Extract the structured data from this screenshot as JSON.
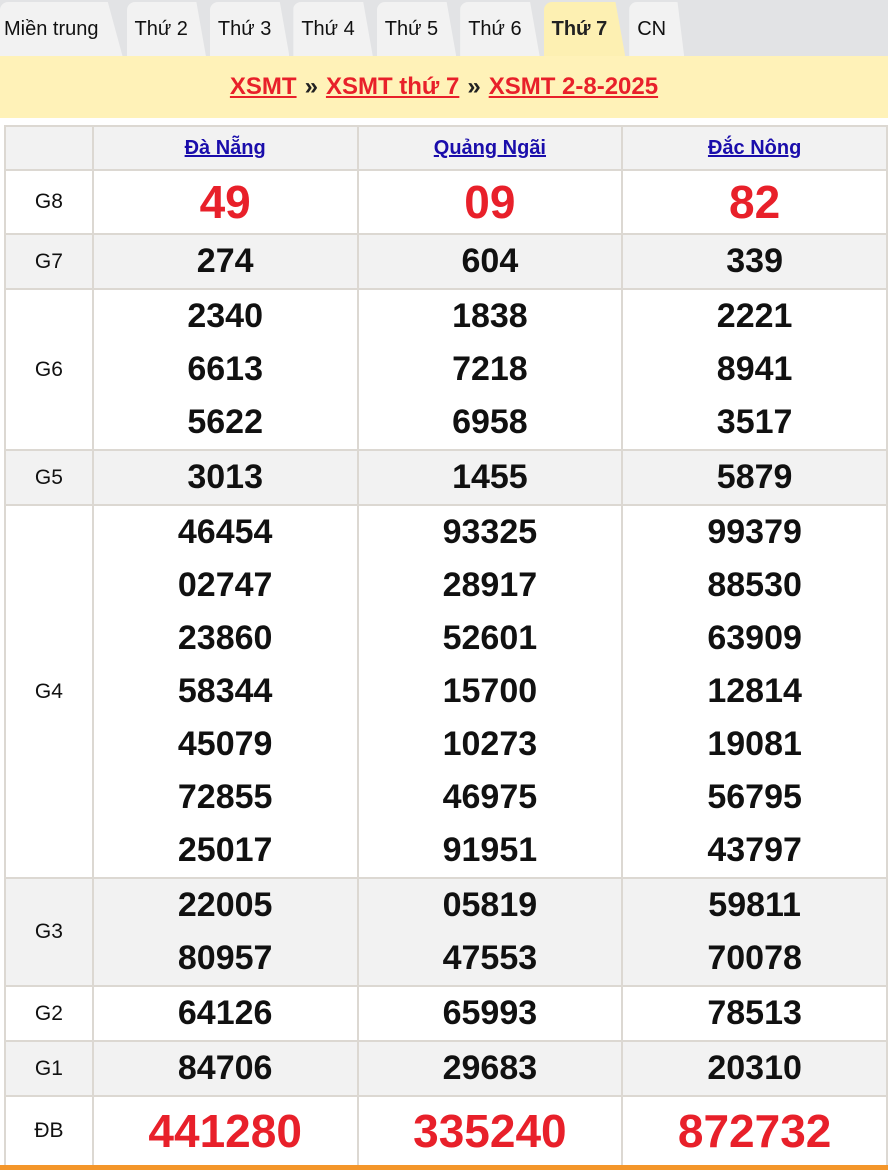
{
  "tabs": [
    "Miền trung",
    "Thứ 2",
    "Thứ 3",
    "Thứ 4",
    "Thứ 5",
    "Thứ 6",
    "Thứ 7",
    "CN"
  ],
  "active_tab": "Thứ 7",
  "breadcrumb": {
    "items": [
      "XSMT",
      "XSMT thứ 7",
      "XSMT 2-8-2025"
    ],
    "separator": "»"
  },
  "colors": {
    "accent_red": "#e8202a",
    "link_blue": "#1a0dab",
    "banner_bg": "#fff2b8"
  },
  "provinces": [
    "Đà Nẵng",
    "Quảng Ngãi",
    "Đắc Nông"
  ],
  "rows": [
    {
      "label": "G8",
      "values": [
        [
          "49"
        ],
        [
          "09"
        ],
        [
          "82"
        ]
      ]
    },
    {
      "label": "G7",
      "values": [
        [
          "274"
        ],
        [
          "604"
        ],
        [
          "339"
        ]
      ]
    },
    {
      "label": "G6",
      "values": [
        [
          "2340",
          "6613",
          "5622"
        ],
        [
          "1838",
          "7218",
          "6958"
        ],
        [
          "2221",
          "8941",
          "3517"
        ]
      ]
    },
    {
      "label": "G5",
      "values": [
        [
          "3013"
        ],
        [
          "1455"
        ],
        [
          "5879"
        ]
      ]
    },
    {
      "label": "G4",
      "values": [
        [
          "46454",
          "02747",
          "23860",
          "58344",
          "45079",
          "72855",
          "25017"
        ],
        [
          "93325",
          "28917",
          "52601",
          "15700",
          "10273",
          "46975",
          "91951"
        ],
        [
          "99379",
          "88530",
          "63909",
          "12814",
          "19081",
          "56795",
          "43797"
        ]
      ]
    },
    {
      "label": "G3",
      "values": [
        [
          "22005",
          "80957"
        ],
        [
          "05819",
          "47553"
        ],
        [
          "59811",
          "70078"
        ]
      ]
    },
    {
      "label": "G2",
      "values": [
        [
          "64126"
        ],
        [
          "65993"
        ],
        [
          "78513"
        ]
      ]
    },
    {
      "label": "G1",
      "values": [
        [
          "84706"
        ],
        [
          "29683"
        ],
        [
          "20310"
        ]
      ]
    },
    {
      "label": "ĐB",
      "values": [
        [
          "441280"
        ],
        [
          "335240"
        ],
        [
          "872732"
        ]
      ]
    }
  ]
}
